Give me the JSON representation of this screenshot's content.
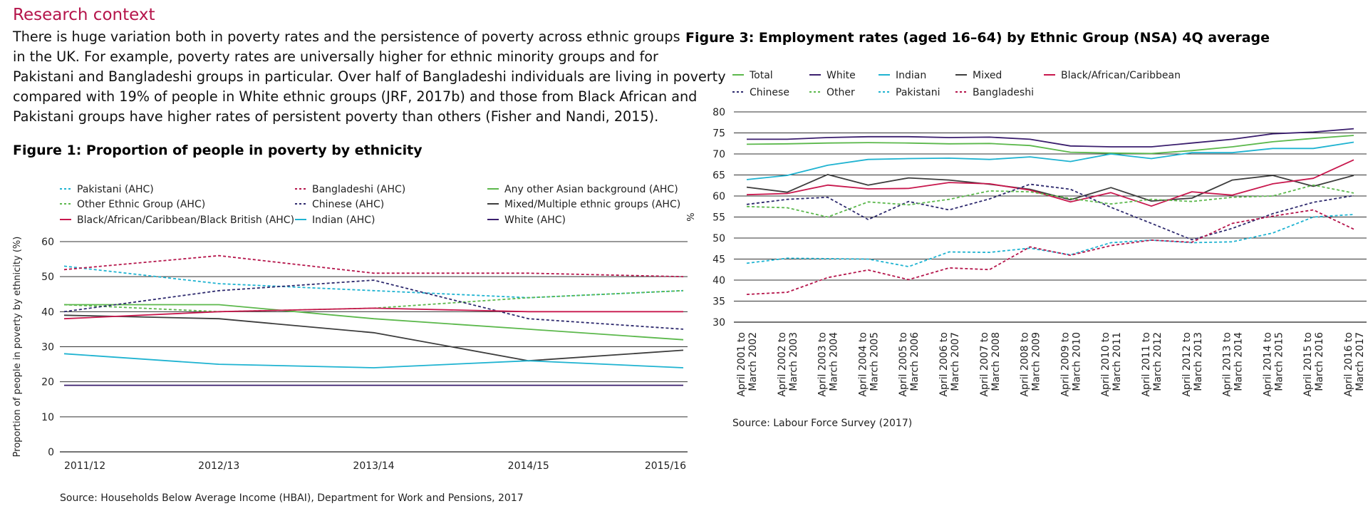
{
  "section_heading": "Research context",
  "intro_lines": [
    "There is huge variation both in poverty rates and the persistence of poverty across ethnic groups",
    "in the UK. For example, poverty rates are universally higher for ethnic minority groups and for",
    "Pakistani and Bangladeshi groups in particular. Over half of Bangladeshi individuals are living in poverty",
    "compared with 19% of people in White ethnic groups (JRF, 2017b) and those from Black African and",
    "Pakistani groups have higher rates of persistent poverty than others (Fisher and Nandi, 2015)."
  ],
  "figure1": {
    "title": "Figure 1: Proportion of people in poverty by ethnicity",
    "source": "Source: Households Below Average Income (HBAI), Department for Work and Pensions, 2017"
  },
  "figure3": {
    "title": "Figure 3: Employment rates (aged 16–64) by Ethnic Group (NSA) 4Q average",
    "source": "Source: Labour Force Survey (2017)"
  },
  "chart_data": [
    {
      "type": "line",
      "title": "Figure 1: Proportion of people in poverty by ethnicity",
      "xlabel": "",
      "ylabel": "Proportion of people in poverty by ethnicity (%)",
      "ylim": [
        0,
        60
      ],
      "yticks": [
        0,
        10,
        20,
        30,
        40,
        50,
        60
      ],
      "grid": true,
      "legend": "top",
      "categories": [
        "2011/12",
        "2012/13",
        "2013/14",
        "2014/15",
        "2015/16"
      ],
      "series": [
        {
          "name": "Pakistani (AHC)",
          "color": "#1fb3d1",
          "dashed": true,
          "values": [
            53,
            48,
            46,
            44,
            46
          ]
        },
        {
          "name": "Bangladeshi (AHC)",
          "color": "#b5154b",
          "dashed": true,
          "values": [
            52,
            56,
            51,
            51,
            50
          ]
        },
        {
          "name": "Any other Asian background (AHC)",
          "color": "#5cb84c",
          "dashed": false,
          "values": [
            42,
            42,
            38,
            35,
            32
          ]
        },
        {
          "name": "Other Ethnic Group (AHC)",
          "color": "#5cb84c",
          "dashed": true,
          "values": [
            42,
            40,
            41,
            44,
            46
          ]
        },
        {
          "name": "Chinese (AHC)",
          "color": "#2e2a6e",
          "dashed": true,
          "values": [
            40,
            46,
            49,
            38,
            35
          ]
        },
        {
          "name": "Mixed/Multiple ethnic groups (AHC)",
          "color": "#3d3d3d",
          "dashed": false,
          "values": [
            39,
            38,
            34,
            26,
            29
          ]
        },
        {
          "name": "Black/African/Caribbean/Black British (AHC)",
          "color": "#c8174d",
          "dashed": false,
          "values": [
            38,
            40,
            41,
            40,
            40
          ]
        },
        {
          "name": "Indian (AHC)",
          "color": "#1fb3d1",
          "dashed": false,
          "values": [
            28,
            25,
            24,
            26,
            24
          ]
        },
        {
          "name": "White (AHC)",
          "color": "#3b1f6e",
          "dashed": false,
          "values": [
            19,
            19,
            19,
            19,
            19
          ]
        }
      ]
    },
    {
      "type": "line",
      "title": "Figure 3: Employment rates (aged 16–64) by Ethnic Group (NSA) 4Q average",
      "xlabel": "",
      "ylabel": "%",
      "ylim": [
        30,
        80
      ],
      "yticks": [
        30,
        35,
        40,
        45,
        50,
        55,
        60,
        65,
        70,
        75,
        80
      ],
      "grid": true,
      "legend": "top",
      "categories": [
        [
          "April 2001 to",
          "March 2002"
        ],
        [
          "April 2002 to",
          "March 2003"
        ],
        [
          "April 2003 to",
          "March 2004"
        ],
        [
          "April 2004 to",
          "March 2005"
        ],
        [
          "April 2005 to",
          "March 2006"
        ],
        [
          "April 2006 to",
          "March 2007"
        ],
        [
          "April 2007 to",
          "March 2008"
        ],
        [
          "April 2008 to",
          "March 2009"
        ],
        [
          "April 2009 to",
          "March 2010"
        ],
        [
          "April 2010 to",
          "March 2011"
        ],
        [
          "April 2011 to",
          "March 2012"
        ],
        [
          "April 2012 to",
          "March 2013"
        ],
        [
          "April 2013 to",
          "March 2014"
        ],
        [
          "April 2014 to",
          "March 2015"
        ],
        [
          "April 2015 to",
          "March 2016"
        ],
        [
          "April 2016 to",
          "March 2017"
        ]
      ],
      "series": [
        {
          "name": "Total",
          "color": "#5cb84c",
          "dashed": false,
          "values": [
            72.3,
            72.4,
            72.6,
            72.7,
            72.6,
            72.4,
            72.5,
            72.0,
            70.4,
            70.2,
            70.1,
            70.8,
            71.7,
            72.9,
            73.7,
            74.4
          ]
        },
        {
          "name": "White",
          "color": "#3b1f6e",
          "dashed": false,
          "values": [
            73.5,
            73.5,
            73.9,
            74.1,
            74.1,
            73.9,
            74.0,
            73.5,
            71.9,
            71.7,
            71.7,
            72.6,
            73.5,
            74.8,
            75.2,
            76.0
          ]
        },
        {
          "name": "Indian",
          "color": "#1fb3d1",
          "dashed": false,
          "values": [
            63.9,
            64.9,
            67.3,
            68.7,
            68.9,
            69.0,
            68.7,
            69.3,
            68.2,
            70.0,
            68.9,
            70.3,
            70.3,
            71.3,
            71.3,
            72.8
          ]
        },
        {
          "name": "Mixed",
          "color": "#3d3d3d",
          "dashed": false,
          "values": [
            62.1,
            60.9,
            65.1,
            62.6,
            64.3,
            63.8,
            62.8,
            61.6,
            59.1,
            62.0,
            58.8,
            59.5,
            63.8,
            64.9,
            62.3,
            64.9
          ]
        },
        {
          "name": "Black/African/Caribbean",
          "color": "#c8174d",
          "dashed": false,
          "values": [
            60.3,
            60.6,
            62.6,
            61.7,
            61.8,
            63.2,
            62.9,
            61.4,
            58.6,
            60.8,
            57.6,
            61.0,
            60.2,
            62.9,
            64.2,
            68.6
          ]
        },
        {
          "name": "Chinese",
          "color": "#2e2a6e",
          "dashed": true,
          "values": [
            58.0,
            59.2,
            59.7,
            54.4,
            58.7,
            56.7,
            59.3,
            62.8,
            61.6,
            57.3,
            53.5,
            49.6,
            52.3,
            55.8,
            58.5,
            60.1
          ]
        },
        {
          "name": "Other",
          "color": "#5cb84c",
          "dashed": true,
          "values": [
            57.5,
            57.2,
            55.0,
            58.6,
            57.9,
            59.2,
            61.2,
            61.0,
            59.4,
            58.1,
            59.2,
            58.7,
            59.7,
            60.0,
            62.6,
            60.7
          ]
        },
        {
          "name": "Pakistani",
          "color": "#1fb3d1",
          "dashed": true,
          "values": [
            44.0,
            45.2,
            45.1,
            45.0,
            43.2,
            46.7,
            46.6,
            47.6,
            46.0,
            48.9,
            49.5,
            48.9,
            49.1,
            51.2,
            55.0,
            55.6
          ]
        },
        {
          "name": "Bangladeshi",
          "color": "#b5154b",
          "dashed": true,
          "values": [
            36.6,
            37.1,
            40.6,
            42.4,
            40.1,
            42.9,
            42.5,
            47.9,
            45.9,
            48.2,
            49.5,
            49.0,
            53.5,
            55.2,
            56.7,
            52.1
          ]
        }
      ]
    }
  ]
}
